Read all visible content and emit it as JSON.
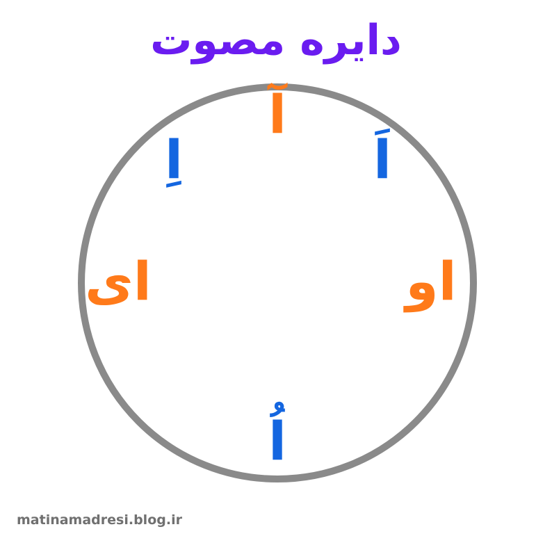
{
  "title": {
    "text": "دایره مصوت",
    "color": "#6a1cf0"
  },
  "circle": {
    "stroke_color": "#8a8a8a"
  },
  "vowels": {
    "top": {
      "text": "آ",
      "color": "#ff7a1a"
    },
    "top_left": {
      "text": "اِ",
      "color": "#1466e0"
    },
    "top_right": {
      "text": "اَ",
      "color": "#1466e0"
    },
    "left": {
      "text": "ای",
      "color": "#ff7a1a"
    },
    "right": {
      "text": "او",
      "color": "#ff7a1a"
    },
    "bottom": {
      "text": "اُ",
      "color": "#1466e0"
    }
  },
  "watermark": {
    "text": "matinamadresi.blog.ir"
  }
}
